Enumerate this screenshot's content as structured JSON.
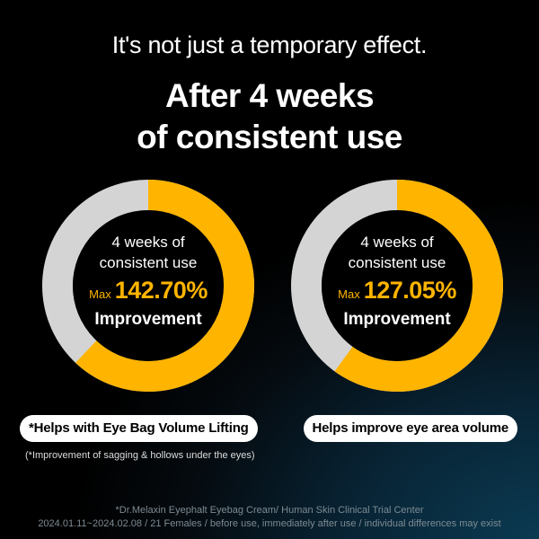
{
  "header": {
    "subtitle": "It's not just a temporary effect.",
    "title_line1": "After 4 weeks",
    "title_line2": "of consistent use"
  },
  "colors": {
    "accent": "#ffb400",
    "track": "#d4d4d4"
  },
  "charts": [
    {
      "line1": "4 weeks of",
      "line2": "consistent use",
      "prefix": "Max",
      "value": "142.70%",
      "label": "Improvement",
      "fill_fraction": 0.62,
      "pill": "*Helps with Eye Bag Volume Lifting"
    },
    {
      "line1": "4 weeks of",
      "line2": "consistent use",
      "prefix": "Max",
      "value": "127.05%",
      "label": "Improvement",
      "fill_fraction": 0.6,
      "pill": "Helps improve eye area volume"
    }
  ],
  "note": "(*Improvement of sagging & hollows under the eyes)",
  "footer": {
    "line1": "*Dr.Melaxin Eyephalt Eyebag Cream/ Human Skin Clinical Trial Center",
    "line2": "2024.01.11~2024.02.08 / 21 Females / before use, immediately after use / individual differences may exist"
  }
}
